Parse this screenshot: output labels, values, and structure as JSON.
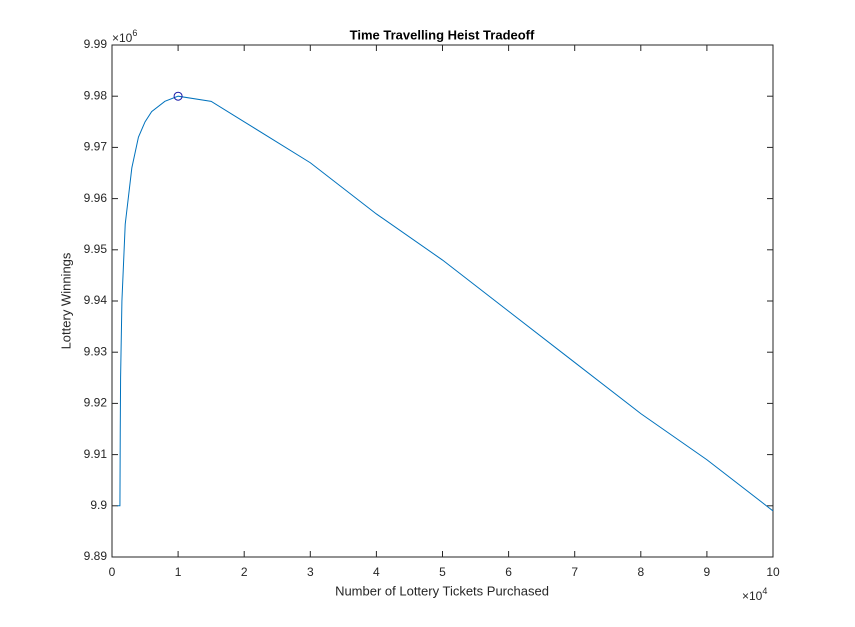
{
  "chart_data": {
    "type": "line",
    "title": "Time Travelling Heist Tradeoff",
    "x_label": "Number of Lottery Tickets Purchased",
    "y_label": "Lottery Winnings",
    "x_multiplier": {
      "base": "×10",
      "exponent": "4"
    },
    "y_multiplier": {
      "base": "×10",
      "exponent": "6"
    },
    "xlim": [
      0,
      10
    ],
    "ylim": [
      9.89,
      9.99
    ],
    "xticks": [
      0,
      1,
      2,
      3,
      4,
      5,
      6,
      7,
      8,
      9,
      10
    ],
    "yticks": [
      9.89,
      9.9,
      9.91,
      9.92,
      9.93,
      9.94,
      9.95,
      9.96,
      9.97,
      9.98,
      9.99
    ],
    "grid": false,
    "series": [
      {
        "color": "#0072bd",
        "marker": "none",
        "x": [
          0.08,
          0.12,
          0.125,
          0.13,
          0.15,
          0.2,
          0.3,
          0.4,
          0.5,
          0.6,
          0.8,
          1.0,
          1.5,
          2,
          3,
          4,
          5,
          6,
          7,
          8,
          9,
          10
        ],
        "values": [
          9.9,
          9.9,
          9.915,
          9.925,
          9.94,
          9.955,
          9.966,
          9.972,
          9.975,
          9.977,
          9.979,
          9.98,
          9.979,
          9.975,
          9.967,
          9.957,
          9.948,
          9.938,
          9.928,
          9.918,
          9.909,
          9.899
        ]
      },
      {
        "color": "#1a1aa8",
        "marker": "circle",
        "x": [
          1.0
        ],
        "values": [
          9.98
        ]
      }
    ]
  }
}
